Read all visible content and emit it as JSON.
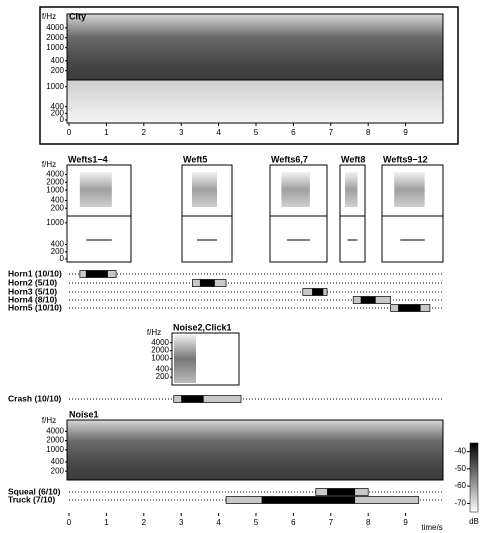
{
  "freq_label": "f/Hz",
  "freq_ticks": [
    4000,
    2000,
    1000,
    400,
    200
  ],
  "lag_ticks": [
    1000,
    400,
    200,
    0
  ],
  "time_axis": {
    "ticks": [
      0,
      1,
      2,
      3,
      4,
      5,
      6,
      7,
      8,
      9
    ],
    "label": "time/s",
    "xlim": [
      0,
      10
    ]
  },
  "panels": {
    "city": "City",
    "wefts": [
      "Wefts1−4",
      "Weft5",
      "Wefts6,7",
      "Weft8",
      "Wefts9−12"
    ],
    "noise2": "Noise2,Click1",
    "noise1": "Noise1"
  },
  "events": [
    {
      "name": "Horn1 (10/10)",
      "outer": [
        0.29,
        1.26
      ],
      "inner": [
        0.45,
        1.04
      ]
    },
    {
      "name": "Horn2 (5/10)",
      "outer": [
        3.3,
        4.2
      ],
      "inner": [
        3.5,
        3.9
      ]
    },
    {
      "name": "Horn3 (5/10)",
      "outer": [
        6.25,
        6.9
      ],
      "inner": [
        6.5,
        6.8
      ]
    },
    {
      "name": "Horn4 (8/10)",
      "outer": [
        7.6,
        8.6
      ],
      "inner": [
        7.8,
        8.2
      ]
    },
    {
      "name": "Horn5 (10/10)",
      "outer": [
        8.6,
        9.65
      ],
      "inner": [
        8.8,
        9.4
      ]
    },
    {
      "name": "Crash (10/10)",
      "outer": [
        2.8,
        4.6
      ],
      "inner": [
        3.0,
        3.6
      ]
    },
    {
      "name": "Squeal (6/10)",
      "outer": [
        6.6,
        8.0
      ],
      "inner": [
        6.9,
        7.65
      ]
    },
    {
      "name": "Truck (7/10)",
      "outer": [
        4.2,
        9.35
      ],
      "inner": [
        5.15,
        7.65
      ]
    }
  ],
  "colorbar": {
    "ticks": [
      -40,
      -50,
      -60,
      -70
    ],
    "label": "dB",
    "lim": [
      -75,
      -35
    ]
  }
}
